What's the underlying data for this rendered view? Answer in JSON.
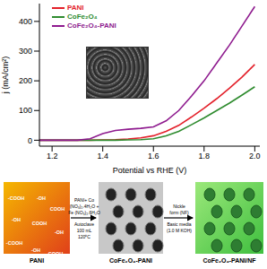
{
  "chart_data": {
    "type": "line",
    "x_label": "Potential vs RHE (V)",
    "y_label": "j (mA/cm²)",
    "x": [
      1.15,
      1.2,
      1.25,
      1.3,
      1.35,
      1.4,
      1.45,
      1.5,
      1.55,
      1.6,
      1.65,
      1.7,
      1.75,
      1.8,
      1.85,
      1.9,
      1.95,
      2.0
    ],
    "series": [
      {
        "name": "PANI",
        "color": "#e3202a",
        "values": [
          0,
          0,
          0,
          0,
          0,
          1,
          2,
          4,
          8,
          15,
          30,
          50,
          78,
          108,
          140,
          175,
          213,
          255
        ]
      },
      {
        "name": "CoFe₂O₄",
        "color": "#2e8b2e",
        "values": [
          0,
          0,
          0,
          0,
          0,
          0,
          0,
          1,
          2,
          5,
          15,
          30,
          52,
          75,
          100,
          125,
          152,
          180
        ]
      },
      {
        "name": "CoFe₂O₄-PANI",
        "color": "#8e1a8e",
        "values": [
          0,
          0,
          0,
          0,
          5,
          22,
          33,
          37,
          40,
          45,
          65,
          100,
          148,
          200,
          260,
          320,
          385,
          450
        ]
      }
    ],
    "xlim": [
      1.15,
      2.02
    ],
    "xticks": [
      {
        "value": 1.2,
        "label": "1.2"
      },
      {
        "value": 1.4,
        "label": "1.4"
      },
      {
        "value": 1.6,
        "label": "1.6"
      },
      {
        "value": 1.8,
        "label": "1.8"
      },
      {
        "value": 2,
        "label": "2.0"
      }
    ],
    "ylim": [
      -20,
      460
    ],
    "yticks": [
      0,
      100,
      200,
      300,
      400
    ],
    "grid": false,
    "legend": "upper left"
  },
  "diagram": {
    "stages": [
      "PANI",
      "CoFe₂O₄-PANI",
      "CoFe₂O₄-PANI/NF"
    ],
    "steps": [
      {
        "above": [
          "PANI+ Co",
          "(NO₃)₂.4H₂O +",
          "Fe (NO₃)₂.6H₂O"
        ],
        "below": [
          "Autoclave",
          "100 mL",
          "120⁰C"
        ]
      },
      {
        "above": [
          "Nickle",
          "form (NF)"
        ],
        "below": [
          "Basic media",
          "(1.0 M KOH)"
        ]
      }
    ],
    "groups": [
      "-COOH",
      "-OH",
      "COOH",
      "-OH",
      "COOH",
      "-OH",
      "-COOH",
      "-OH",
      "COOH"
    ]
  }
}
